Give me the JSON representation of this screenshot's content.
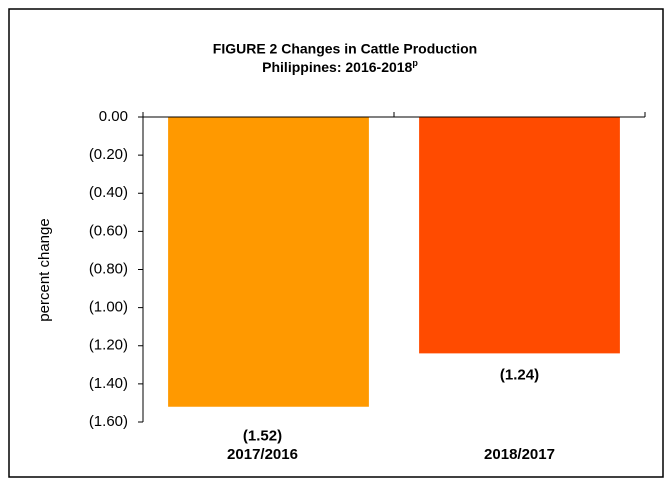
{
  "chart_data": {
    "type": "bar",
    "title": "FIGURE 2  Changes in Cattle Production",
    "subtitle": "Philippines: 2016-2018",
    "subtitle_note": "p",
    "y_label": "percent change",
    "categories": [
      "2017/2016",
      "2018/2017"
    ],
    "values": [
      -1.52,
      -1.24
    ],
    "value_labels": [
      "(1.52)",
      "(1.24)"
    ],
    "colors": [
      "#ff9900",
      "#ff4b00"
    ],
    "ylim": [
      -1.6,
      0
    ],
    "yticks": [
      {
        "value": 0,
        "label": "0.00"
      },
      {
        "value": -0.2,
        "label": "(0.20)"
      },
      {
        "value": -0.4,
        "label": "(0.40)"
      },
      {
        "value": -0.6,
        "label": "(0.60)"
      },
      {
        "value": -0.8,
        "label": "(0.80)"
      },
      {
        "value": -1.0,
        "label": "(1.00)"
      },
      {
        "value": -1.2,
        "label": "(1.20)"
      },
      {
        "value": -1.4,
        "label": "(1.40)"
      },
      {
        "value": -1.6,
        "label": "(1.60)"
      }
    ],
    "grid": false
  }
}
